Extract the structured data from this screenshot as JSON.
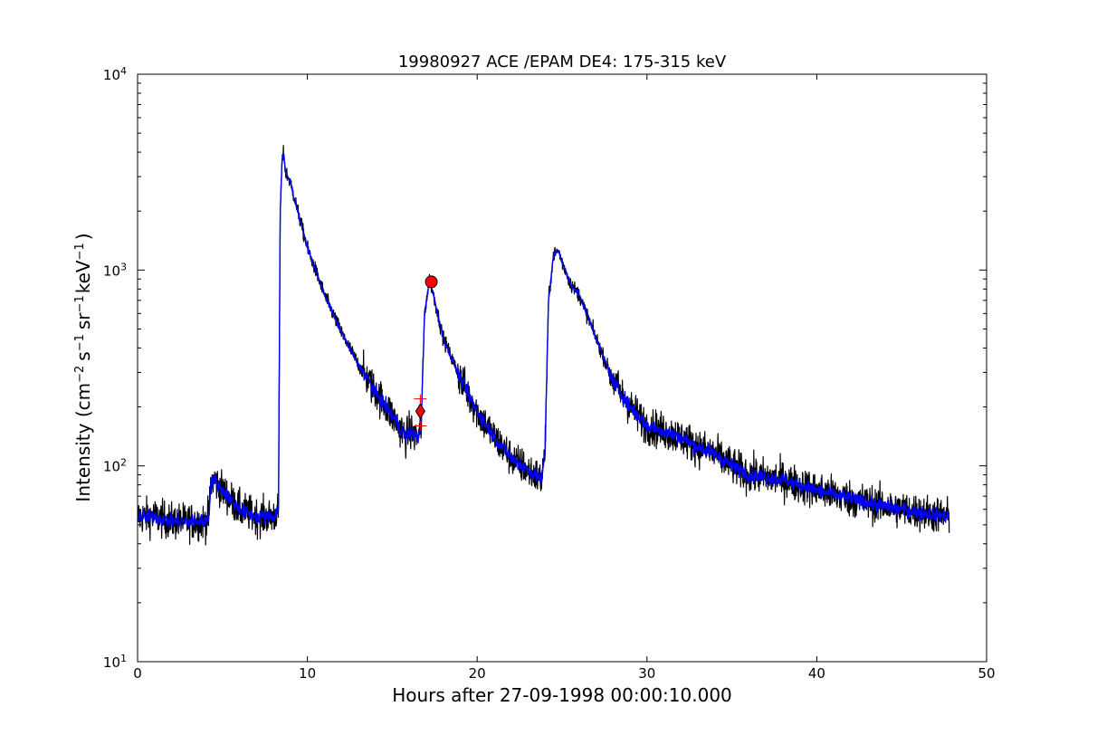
{
  "chart_data": {
    "type": "line",
    "title": "19980927 ACE /EPAM DE4: 175-315 keV",
    "xlabel": "Hours after 27-09-1998 00:00:10.000",
    "ylabel": "Intensity (cm⁻² s⁻¹ sr⁻¹ keV⁻¹)",
    "ylabel_parts": {
      "prefix": "Intensity (cm",
      "cm_exp": "−2",
      "s": "s",
      "s_exp": "−1",
      "sr": "sr",
      "sr_exp": "−1",
      "kev": "keV",
      "kev_exp": "−1",
      "suffix": ")"
    },
    "xlim": [
      0,
      50
    ],
    "ylim": [
      10,
      10000
    ],
    "yscale": "log",
    "x_ticks": [
      "0",
      "10",
      "20",
      "30",
      "40",
      "50"
    ],
    "y_ticks": [
      {
        "value": 10,
        "base": "10",
        "exp": "1"
      },
      {
        "value": 100,
        "base": "10",
        "exp": "2"
      },
      {
        "value": 1000,
        "base": "10",
        "exp": "3"
      },
      {
        "value": 10000,
        "base": "10",
        "exp": "4"
      }
    ],
    "grid": false,
    "series": [
      {
        "color": "#000000",
        "style": "raw",
        "x": [
          0.0,
          1.0,
          2.0,
          3.0,
          4.0,
          4.2,
          4.3,
          4.5,
          5.0,
          6.0,
          7.0,
          8.0,
          8.3,
          8.4,
          8.5,
          8.6,
          8.7,
          9.0,
          9.5,
          10.0,
          11.0,
          12.0,
          13.0,
          14.0,
          15.0,
          15.8,
          16.0,
          16.5,
          16.7,
          16.9,
          17.2,
          17.5,
          18.0,
          19.0,
          20.0,
          21.0,
          22.0,
          23.0,
          23.8,
          24.0,
          24.2,
          24.5,
          24.8,
          25.0,
          25.5,
          26.0,
          27.0,
          28.0,
          29.0,
          30.0,
          31.0,
          32.0,
          33.0,
          34.0,
          35.0,
          36.0,
          38.0,
          40.0,
          42.0,
          44.0,
          46.0,
          47.8
        ],
        "y": [
          55,
          55,
          52,
          52,
          52,
          55,
          80,
          85,
          75,
          60,
          55,
          55,
          60,
          2000,
          3500,
          4000,
          3200,
          2800,
          1900,
          1300,
          750,
          480,
          330,
          240,
          180,
          140,
          150,
          140,
          160,
          600,
          900,
          700,
          450,
          280,
          190,
          140,
          110,
          95,
          85,
          120,
          700,
          1200,
          1250,
          1100,
          850,
          750,
          450,
          270,
          200,
          160,
          150,
          140,
          125,
          115,
          100,
          90,
          85,
          75,
          68,
          62,
          58,
          55
        ]
      },
      {
        "color": "#0000ff",
        "style": "smoothed",
        "x": [
          0.0,
          1.0,
          2.0,
          3.0,
          4.0,
          4.2,
          4.3,
          4.5,
          5.0,
          6.0,
          7.0,
          8.0,
          8.3,
          8.4,
          8.5,
          8.6,
          8.7,
          9.0,
          9.5,
          10.0,
          11.0,
          12.0,
          13.0,
          14.0,
          15.0,
          15.8,
          16.0,
          16.5,
          16.7,
          16.9,
          17.2,
          17.5,
          18.0,
          19.0,
          20.0,
          21.0,
          22.0,
          23.0,
          23.8,
          24.0,
          24.2,
          24.5,
          24.8,
          25.0,
          25.5,
          26.0,
          27.0,
          28.0,
          29.0,
          30.0,
          31.0,
          32.0,
          33.0,
          34.0,
          35.0,
          36.0,
          38.0,
          40.0,
          42.0,
          44.0,
          46.0,
          47.8
        ],
        "y": [
          55,
          55,
          52,
          52,
          52,
          55,
          80,
          85,
          75,
          60,
          55,
          55,
          60,
          2000,
          3500,
          4000,
          3200,
          2800,
          1900,
          1300,
          750,
          480,
          330,
          240,
          180,
          140,
          150,
          140,
          160,
          600,
          900,
          700,
          450,
          280,
          190,
          140,
          110,
          95,
          85,
          120,
          700,
          1200,
          1250,
          1100,
          850,
          750,
          450,
          270,
          200,
          160,
          150,
          140,
          125,
          115,
          100,
          90,
          85,
          75,
          68,
          62,
          58,
          55
        ]
      }
    ],
    "markers": [
      {
        "shape": "circle",
        "color": "#ff0000",
        "x": 17.3,
        "y": 870
      },
      {
        "shape": "diamond",
        "color": "#ff0000",
        "x": 16.65,
        "y": 190
      },
      {
        "shape": "plus",
        "color": "#ff0000",
        "x": 16.65,
        "y": 220
      },
      {
        "shape": "plus",
        "color": "#ff0000",
        "x": 16.65,
        "y": 160
      }
    ]
  }
}
